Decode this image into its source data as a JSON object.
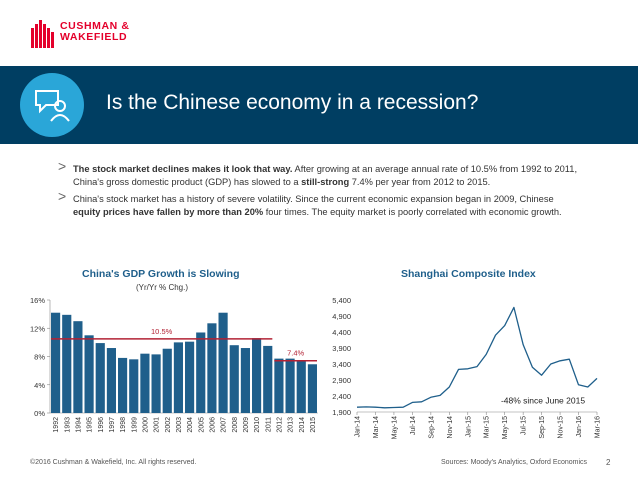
{
  "brand": {
    "line1": "CUSHMAN &",
    "line2": "WAKEFIELD",
    "color": "#e4002b"
  },
  "header": {
    "title": "Is the Chinese economy in a recession?",
    "icon": "chat-person-icon",
    "banner_color": "#003e62",
    "icon_color": "#2aa6d8"
  },
  "bullets": [
    {
      "segments": [
        {
          "text": "The stock market declines makes it look that way.",
          "bold": true
        },
        {
          "text": " After growing at an average annual rate of 10.5% from 1992 to 2011, China's gross domestic product (GDP) has slowed to a ",
          "bold": false
        },
        {
          "text": "still-strong",
          "bold": true
        },
        {
          "text": " 7.4% per year from 2012 to 2015.",
          "bold": false
        }
      ]
    },
    {
      "segments": [
        {
          "text": "China's stock market has a history of severe volatility. Since the current economic expansion began in 2009, Chinese ",
          "bold": false
        },
        {
          "text": "equity prices have fallen by more than 20%",
          "bold": true
        },
        {
          "text": " four times. The equity market is poorly correlated with economic growth.",
          "bold": false
        }
      ]
    }
  ],
  "gdp_chart": {
    "title": "China's GDP Growth is Slowing",
    "subtitle": "(Yr/Yr % Chg.)"
  },
  "shanghai_chart": {
    "title": "Shanghai Composite Index"
  },
  "chart_data": [
    {
      "type": "bar",
      "title": "China's GDP Growth is Slowing",
      "subtitle": "(Yr/Yr % Chg.)",
      "categories": [
        "1992",
        "1993",
        "1994",
        "1995",
        "1996",
        "1997",
        "1998",
        "1999",
        "2000",
        "2001",
        "2002",
        "2003",
        "2004",
        "2005",
        "2006",
        "2007",
        "2008",
        "2009",
        "2010",
        "2011",
        "2012",
        "2013",
        "2014",
        "2015"
      ],
      "values": [
        14.2,
        13.9,
        13.0,
        11.0,
        9.9,
        9.2,
        7.8,
        7.6,
        8.4,
        8.3,
        9.1,
        10.0,
        10.1,
        11.4,
        12.7,
        14.2,
        9.6,
        9.2,
        10.6,
        9.5,
        7.7,
        7.7,
        7.3,
        6.9
      ],
      "ylim": [
        0,
        16
      ],
      "yticks": [
        "0%",
        "4%",
        "8%",
        "12%",
        "16%"
      ],
      "bar_color": "#1f5f8b",
      "averages": [
        {
          "label": "10.5%",
          "value": 10.5,
          "from": "1992",
          "to": "2011"
        },
        {
          "label": "7.4%",
          "value": 7.4,
          "from": "2012",
          "to": "2015"
        }
      ],
      "avg_color": "#b22234"
    },
    {
      "type": "line",
      "title": "Shanghai Composite Index",
      "x": [
        "Jan-14",
        "Feb-14",
        "Mar-14",
        "Apr-14",
        "May-14",
        "Jun-14",
        "Jul-14",
        "Aug-14",
        "Sep-14",
        "Oct-14",
        "Nov-14",
        "Dec-14",
        "Jan-15",
        "Feb-15",
        "Mar-15",
        "Apr-15",
        "May-15",
        "Jun-15",
        "Jul-15",
        "Aug-15",
        "Sep-15",
        "Oct-15",
        "Nov-15",
        "Dec-15",
        "Jan-16",
        "Feb-16",
        "Mar-16"
      ],
      "values": [
        2050,
        2060,
        2050,
        2030,
        2040,
        2050,
        2200,
        2220,
        2360,
        2420,
        2680,
        3230,
        3250,
        3320,
        3700,
        4300,
        4600,
        5170,
        4000,
        3300,
        3050,
        3400,
        3500,
        3550,
        2750,
        2680,
        2950
      ],
      "ylim": [
        1900,
        5400
      ],
      "yticks": [
        "1,900",
        "2,400",
        "2,900",
        "3,400",
        "3,900",
        "4,400",
        "4,900",
        "5,400"
      ],
      "xticks": [
        "Jan-14",
        "Mar-14",
        "May-14",
        "Jul-14",
        "Sep-14",
        "Nov-14",
        "Jan-15",
        "Mar-15",
        "May-15",
        "Jul-15",
        "Sep-15",
        "Nov-15",
        "Jan-16",
        "Mar-16"
      ],
      "line_color": "#1f5f8b",
      "annotation": "-48% since June 2015"
    }
  ],
  "footer": {
    "copyright": "©2016 Cushman & Wakefield, Inc. All rights reserved.",
    "sources": "Sources: Moody's Analytics, Oxford Economics",
    "page": "2"
  }
}
